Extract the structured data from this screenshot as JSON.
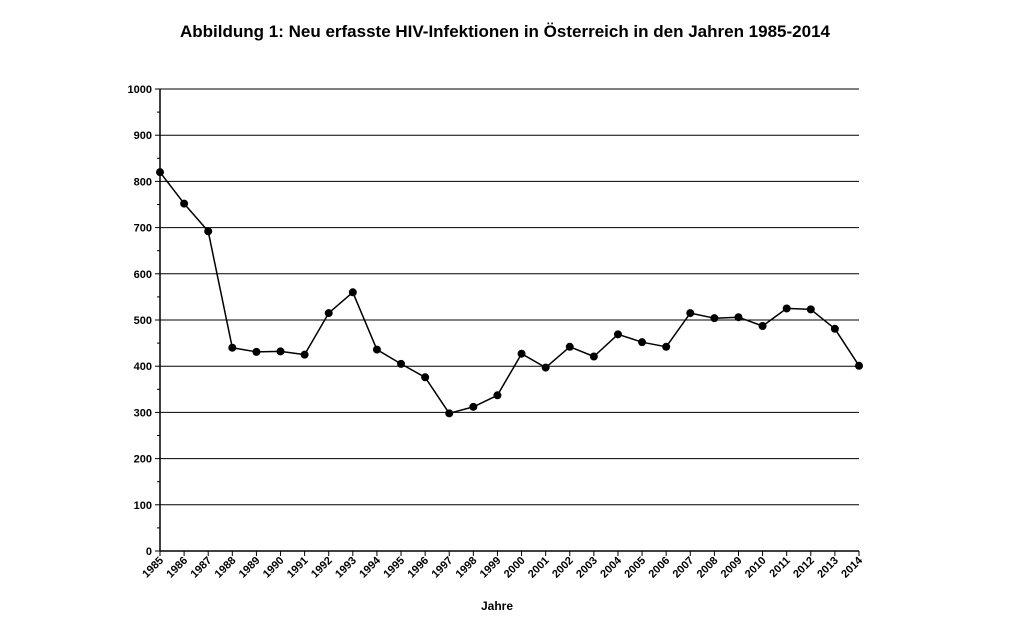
{
  "chart_data": {
    "type": "line",
    "title": "Abbildung 1: Neu erfasste HIV-Infektionen in Österreich in den Jahren 1985-2014",
    "xlabel": "Jahre",
    "ylabel": "",
    "ylim": [
      0,
      1000
    ],
    "yticks": [
      0,
      100,
      200,
      300,
      400,
      500,
      600,
      700,
      800,
      900,
      1000
    ],
    "grid": true,
    "legend": "none",
    "line_color": "#000000",
    "categories": [
      "1985",
      "1986",
      "1987",
      "1988",
      "1989",
      "1990",
      "1991",
      "1992",
      "1993",
      "1994",
      "1995",
      "1996",
      "1997",
      "1998",
      "1999",
      "2000",
      "2001",
      "2002",
      "2003",
      "2004",
      "2005",
      "2006",
      "2007",
      "2008",
      "2009",
      "2010",
      "2011",
      "2012",
      "2013",
      "2014"
    ],
    "series": [
      {
        "values": [
          820,
          752,
          692,
          440,
          431,
          432,
          425,
          515,
          560,
          436,
          405,
          376,
          298,
          312,
          337,
          427,
          397,
          442,
          421,
          469,
          452,
          442,
          515,
          504,
          506,
          487,
          525,
          523,
          481,
          401
        ]
      }
    ]
  }
}
